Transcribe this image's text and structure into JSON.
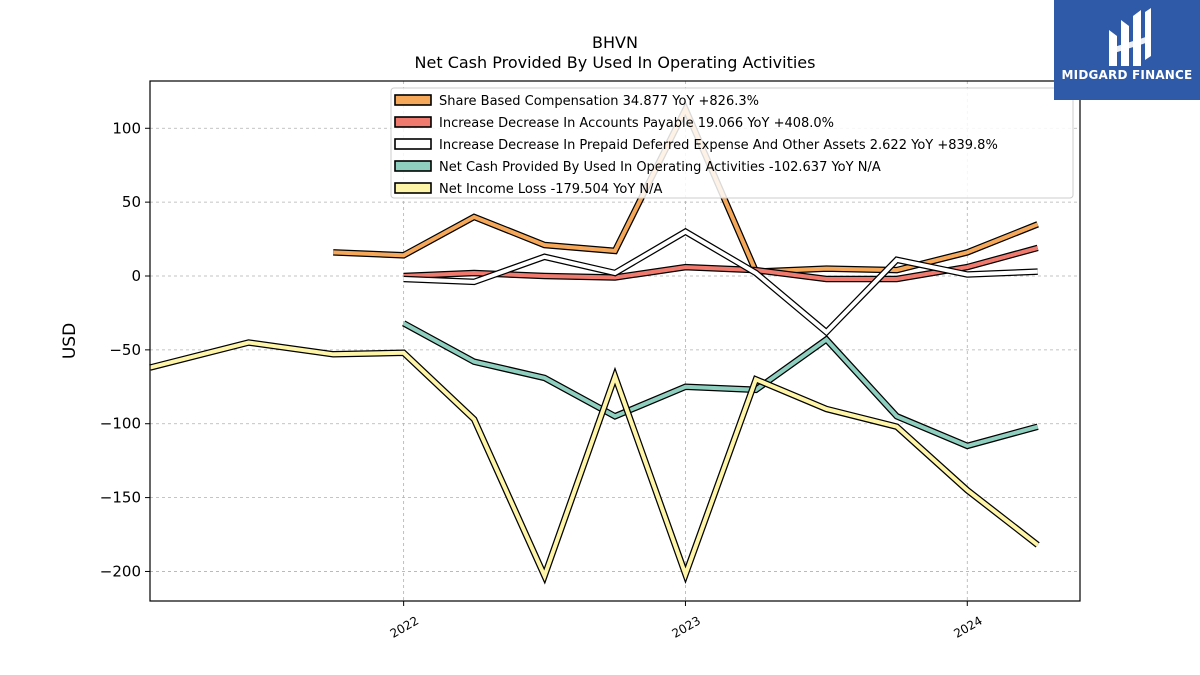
{
  "brand": {
    "name": "MIDGARD FINANCE",
    "background": "#2e5aa8"
  },
  "chart_data": {
    "type": "line",
    "title": "BHVN",
    "subtitle": "Net Cash Provided By Used In Operating Activities",
    "ylabel": "USD",
    "xlabel": "",
    "ylim": [
      -220,
      132
    ],
    "xlim": [
      2021.1,
      2024.4
    ],
    "yticks": [
      100,
      50,
      0,
      -50,
      -100,
      -150,
      -200
    ],
    "ytick_labels": [
      "100",
      "50",
      "0",
      "−50",
      "−100",
      "−150",
      "−200"
    ],
    "xticks": [
      2022,
      2023,
      2024
    ],
    "xtick_labels": [
      "2022",
      "2023",
      "2024"
    ],
    "grid": true,
    "legend_position": "top-center",
    "series": [
      {
        "name": "Share Based Compensation",
        "legend": "Share Based Compensation  34.877 YoY +826.3%",
        "color": "#f5a85a",
        "x": [
          2021.75,
          2022.0,
          2022.25,
          2022.5,
          2022.75,
          2023.0,
          2023.25,
          2023.5,
          2023.75,
          2024.0,
          2024.25
        ],
        "y": [
          16,
          14,
          40,
          21,
          17,
          113,
          3,
          5,
          4,
          16,
          35
        ]
      },
      {
        "name": "Increase Decrease In Accounts Payable",
        "legend": "Increase Decrease In Accounts Payable  19.066 YoY +408.0%",
        "color": "#f07a6e",
        "x": [
          2022.0,
          2022.25,
          2022.5,
          2022.75,
          2023.0,
          2023.25,
          2023.5,
          2023.75,
          2024.0,
          2024.25
        ],
        "y": [
          0,
          2,
          0,
          -1,
          6,
          4,
          -2,
          -2,
          6,
          19
        ]
      },
      {
        "name": "Increase Decrease In Prepaid Deferred Expense And Other Assets",
        "legend": "Increase Decrease In Prepaid Deferred Expense And Other Assets  2.622 YoY +839.8%",
        "color": "#ffffff",
        "x": [
          2022.0,
          2022.25,
          2022.5,
          2022.75,
          2023.0,
          2023.25,
          2023.5,
          2023.75,
          2024.0,
          2024.25
        ],
        "y": [
          -2,
          -4,
          13,
          2,
          30,
          2,
          -38,
          11,
          1,
          3
        ]
      },
      {
        "name": "Net Cash Provided By Used In Operating Activities",
        "legend": "Net Cash Provided By Used In Operating Activities  -102.637 YoY N/A",
        "color": "#8ecfbf",
        "x": [
          2022.0,
          2022.25,
          2022.5,
          2022.75,
          2023.0,
          2023.25,
          2023.5,
          2023.75,
          2024.0,
          2024.25
        ],
        "y": [
          -32,
          -58,
          -69,
          -95,
          -75,
          -77,
          -43,
          -95,
          -115,
          -102
        ]
      },
      {
        "name": "Net Income Loss",
        "legend": "Net Income Loss  -179.504 YoY N/A",
        "color": "#fff5a8",
        "x": [
          2021.1,
          2021.45,
          2021.75,
          2022.0,
          2022.25,
          2022.5,
          2022.75,
          2023.0,
          2023.25,
          2023.5,
          2023.75,
          2024.0,
          2024.25
        ],
        "y": [
          -62,
          -45,
          -53,
          -52,
          -97,
          -203,
          -68,
          -202,
          -70,
          -90,
          -102,
          -145,
          -182
        ]
      }
    ]
  }
}
